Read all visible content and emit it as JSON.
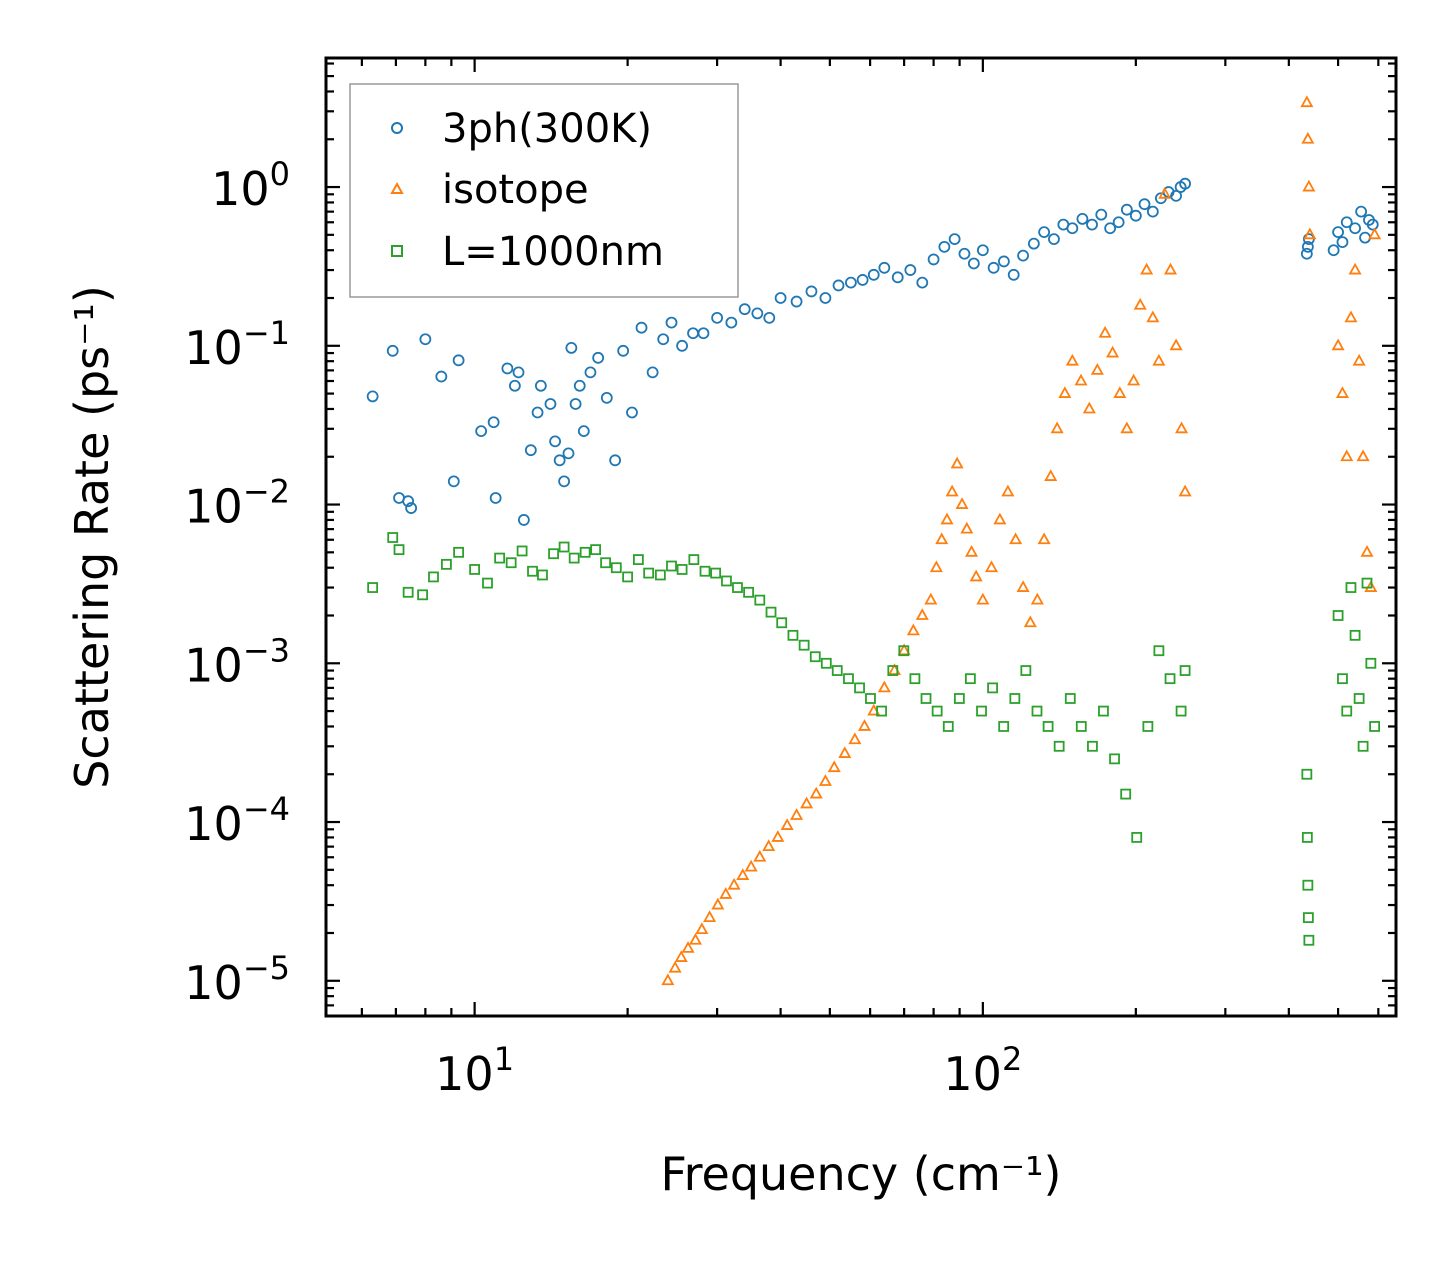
{
  "chart_data": {
    "type": "scatter",
    "xscale": "log",
    "yscale": "log",
    "xlim": [
      5.1,
      650
    ],
    "ylim": [
      6e-06,
      6.5
    ],
    "xlabel": "Frequency (cm⁻¹)",
    "ylabel": "Scattering Rate (ps⁻¹)",
    "x_ticks": [
      {
        "value": 10,
        "base": "10",
        "exp": "1"
      },
      {
        "value": 100,
        "base": "10",
        "exp": "2"
      }
    ],
    "y_ticks": [
      {
        "value": 1,
        "base": "10",
        "exp": "0"
      },
      {
        "value": 0.1,
        "base": "10",
        "exp": "−1"
      },
      {
        "value": 0.01,
        "base": "10",
        "exp": "−2"
      },
      {
        "value": 0.001,
        "base": "10",
        "exp": "−3"
      },
      {
        "value": 0.0001,
        "base": "10",
        "exp": "−4"
      },
      {
        "value": 1e-05,
        "base": "10",
        "exp": "−5"
      }
    ],
    "legend_position": "top-left",
    "series": [
      {
        "name": "3ph(300K)",
        "marker": "circle",
        "color": "#1f77b4",
        "x": [
          6.3,
          6.9,
          7.1,
          7.4,
          7.5,
          8.0,
          8.6,
          9.1,
          9.3,
          10.3,
          10.9,
          11.0,
          11.6,
          12.0,
          12.2,
          12.5,
          12.9,
          13.3,
          13.5,
          14.1,
          14.4,
          14.7,
          15.0,
          15.3,
          15.5,
          15.8,
          16.1,
          16.4,
          16.9,
          17.5,
          18.2,
          18.9,
          19.6,
          20.4,
          21.3,
          22.4,
          23.5,
          24.4,
          25.6,
          26.9,
          28.2,
          30.0,
          32.0,
          34.0,
          36.0,
          38.0,
          40.0,
          43.0,
          46.0,
          49.0,
          52.0,
          55.0,
          58.0,
          61.0,
          64.0,
          68.0,
          72.0,
          76.0,
          80.0,
          84.0,
          88.0,
          92.0,
          96.0,
          100.0,
          105.0,
          110.0,
          115.0,
          120.0,
          126.0,
          132.0,
          138.0,
          144.0,
          150.0,
          157.0,
          164.0,
          171.0,
          178.0,
          185.0,
          192.0,
          200.0,
          208.0,
          216.0,
          224.0,
          232.0,
          240.0,
          245.0,
          250.0,
          434.0,
          436.0,
          438.0,
          490.0,
          500.0,
          510.0,
          520.0,
          540.0,
          555.0,
          565.0,
          575.0,
          585.0
        ],
        "y": [
          0.048,
          0.093,
          0.011,
          0.0105,
          0.0095,
          0.11,
          0.064,
          0.014,
          0.081,
          0.029,
          0.033,
          0.011,
          0.072,
          0.056,
          0.068,
          0.008,
          0.022,
          0.038,
          0.056,
          0.043,
          0.025,
          0.019,
          0.014,
          0.021,
          0.097,
          0.043,
          0.056,
          0.029,
          0.068,
          0.084,
          0.047,
          0.019,
          0.093,
          0.038,
          0.13,
          0.068,
          0.11,
          0.14,
          0.1,
          0.12,
          0.12,
          0.15,
          0.14,
          0.17,
          0.16,
          0.15,
          0.2,
          0.19,
          0.22,
          0.2,
          0.24,
          0.25,
          0.26,
          0.28,
          0.31,
          0.27,
          0.3,
          0.25,
          0.35,
          0.42,
          0.47,
          0.38,
          0.33,
          0.4,
          0.31,
          0.34,
          0.28,
          0.37,
          0.44,
          0.52,
          0.47,
          0.58,
          0.55,
          0.63,
          0.58,
          0.67,
          0.55,
          0.6,
          0.72,
          0.66,
          0.78,
          0.7,
          0.85,
          0.93,
          0.88,
          1.0,
          1.05,
          0.38,
          0.42,
          0.47,
          0.4,
          0.52,
          0.45,
          0.6,
          0.55,
          0.7,
          0.48,
          0.62,
          0.58
        ]
      },
      {
        "name": "isotope",
        "marker": "triangle",
        "color": "#ff7f0e",
        "x": [
          24.0,
          24.8,
          25.5,
          26.3,
          27.2,
          28.0,
          29.0,
          30.1,
          31.2,
          32.4,
          33.7,
          35.0,
          36.4,
          37.9,
          39.5,
          41.2,
          43.0,
          45.0,
          47.0,
          49.0,
          51.0,
          53.5,
          56.0,
          58.5,
          61.0,
          64.0,
          67.0,
          70.0,
          73.0,
          76.0,
          79.0,
          81.0,
          83.0,
          85.0,
          87.0,
          89.0,
          91.0,
          93.0,
          95.0,
          97.0,
          100.0,
          104.0,
          108.0,
          112.0,
          116.0,
          120.0,
          124.0,
          128.0,
          132.0,
          136.0,
          140.0,
          145.0,
          150.0,
          156.0,
          162.0,
          168.0,
          174.0,
          180.0,
          186.0,
          192.0,
          198.0,
          204.0,
          210.0,
          216.0,
          222.0,
          228.0,
          234.0,
          240.0,
          246.0,
          250.0,
          434.0,
          436.0,
          438.0,
          440.0,
          500.0,
          510.0,
          520.0,
          530.0,
          540.0,
          550.0,
          560.0,
          570.0,
          580.0,
          590.0
        ],
        "y": [
          1e-05,
          1.2e-05,
          1.4e-05,
          1.6e-05,
          1.8e-05,
          2.1e-05,
          2.5e-05,
          3e-05,
          3.5e-05,
          4e-05,
          4.6e-05,
          5.2e-05,
          6e-05,
          7e-05,
          8e-05,
          9.5e-05,
          0.00011,
          0.00013,
          0.00015,
          0.00018,
          0.00022,
          0.00027,
          0.00033,
          0.0004,
          0.0005,
          0.0007,
          0.0009,
          0.0012,
          0.0016,
          0.002,
          0.0025,
          0.004,
          0.006,
          0.008,
          0.012,
          0.018,
          0.01,
          0.007,
          0.005,
          0.0035,
          0.0025,
          0.004,
          0.008,
          0.012,
          0.006,
          0.003,
          0.0018,
          0.0025,
          0.006,
          0.015,
          0.03,
          0.05,
          0.08,
          0.06,
          0.04,
          0.07,
          0.12,
          0.09,
          0.05,
          0.03,
          0.06,
          0.18,
          0.3,
          0.15,
          0.08,
          0.9,
          0.3,
          0.1,
          0.03,
          0.012,
          3.4,
          2.0,
          1.0,
          0.5,
          0.1,
          0.05,
          0.02,
          0.15,
          0.3,
          0.08,
          0.02,
          0.005,
          0.003,
          0.5
        ],
        "annotation": "dense orange triangle band rising from ~1e-5 at 24 cm⁻¹ to ~1 at 230 cm⁻¹; separate clusters near 435 and 500–590 cm⁻¹"
      },
      {
        "name": "L=1000nm",
        "marker": "square",
        "color": "#2ca02c",
        "x": [
          6.3,
          6.9,
          7.1,
          7.4,
          7.9,
          8.3,
          8.8,
          9.3,
          10.0,
          10.6,
          11.2,
          11.8,
          12.4,
          13.0,
          13.6,
          14.3,
          15.0,
          15.7,
          16.5,
          17.3,
          18.1,
          19.0,
          20.0,
          21.0,
          22.0,
          23.2,
          24.4,
          25.6,
          27.0,
          28.4,
          29.8,
          31.3,
          32.9,
          34.6,
          36.4,
          38.3,
          40.2,
          42.3,
          44.5,
          46.8,
          49.2,
          51.7,
          54.4,
          57.2,
          60.1,
          63.2,
          66.5,
          69.9,
          73.5,
          77.3,
          81.3,
          85.5,
          89.9,
          94.5,
          99.4,
          104.5,
          109.9,
          115.6,
          121.5,
          127.8,
          134.4,
          141.3,
          148.6,
          156.2,
          164.3,
          172.7,
          181.6,
          191.0,
          200.8,
          211.2,
          222.0,
          233.5,
          245.5,
          250.0,
          434.0,
          435.0,
          436.0,
          437.0,
          438.0,
          500.0,
          510.0,
          520.0,
          530.0,
          540.0,
          550.0,
          560.0,
          570.0,
          580.0,
          590.0
        ],
        "y": [
          0.003,
          0.0062,
          0.0052,
          0.0028,
          0.0027,
          0.0035,
          0.0042,
          0.005,
          0.0039,
          0.0032,
          0.0046,
          0.0043,
          0.0051,
          0.0038,
          0.0036,
          0.0049,
          0.0054,
          0.0046,
          0.005,
          0.0052,
          0.0043,
          0.004,
          0.0035,
          0.0045,
          0.0037,
          0.0036,
          0.0041,
          0.0039,
          0.0045,
          0.0038,
          0.0037,
          0.0033,
          0.003,
          0.0028,
          0.0025,
          0.0021,
          0.0018,
          0.0015,
          0.0013,
          0.0011,
          0.001,
          0.0009,
          0.0008,
          0.0007,
          0.0006,
          0.0005,
          0.0009,
          0.0012,
          0.0008,
          0.0006,
          0.0005,
          0.0004,
          0.0006,
          0.0008,
          0.0005,
          0.0007,
          0.0004,
          0.0006,
          0.0009,
          0.0005,
          0.0004,
          0.0003,
          0.0006,
          0.0004,
          0.0003,
          0.0005,
          0.00025,
          0.00015,
          8e-05,
          0.0004,
          0.0012,
          0.0008,
          0.0005,
          0.0009,
          0.0002,
          8e-05,
          4e-05,
          2.5e-05,
          1.8e-05,
          0.002,
          0.0008,
          0.0005,
          0.003,
          0.0015,
          0.0006,
          0.0003,
          0.0032,
          0.001,
          0.0004
        ],
        "annotation": "dense green square cloud decreasing from ~5e-3 at low frequency to ~1e-3–1e-4 above 50 cm⁻¹"
      }
    ]
  }
}
